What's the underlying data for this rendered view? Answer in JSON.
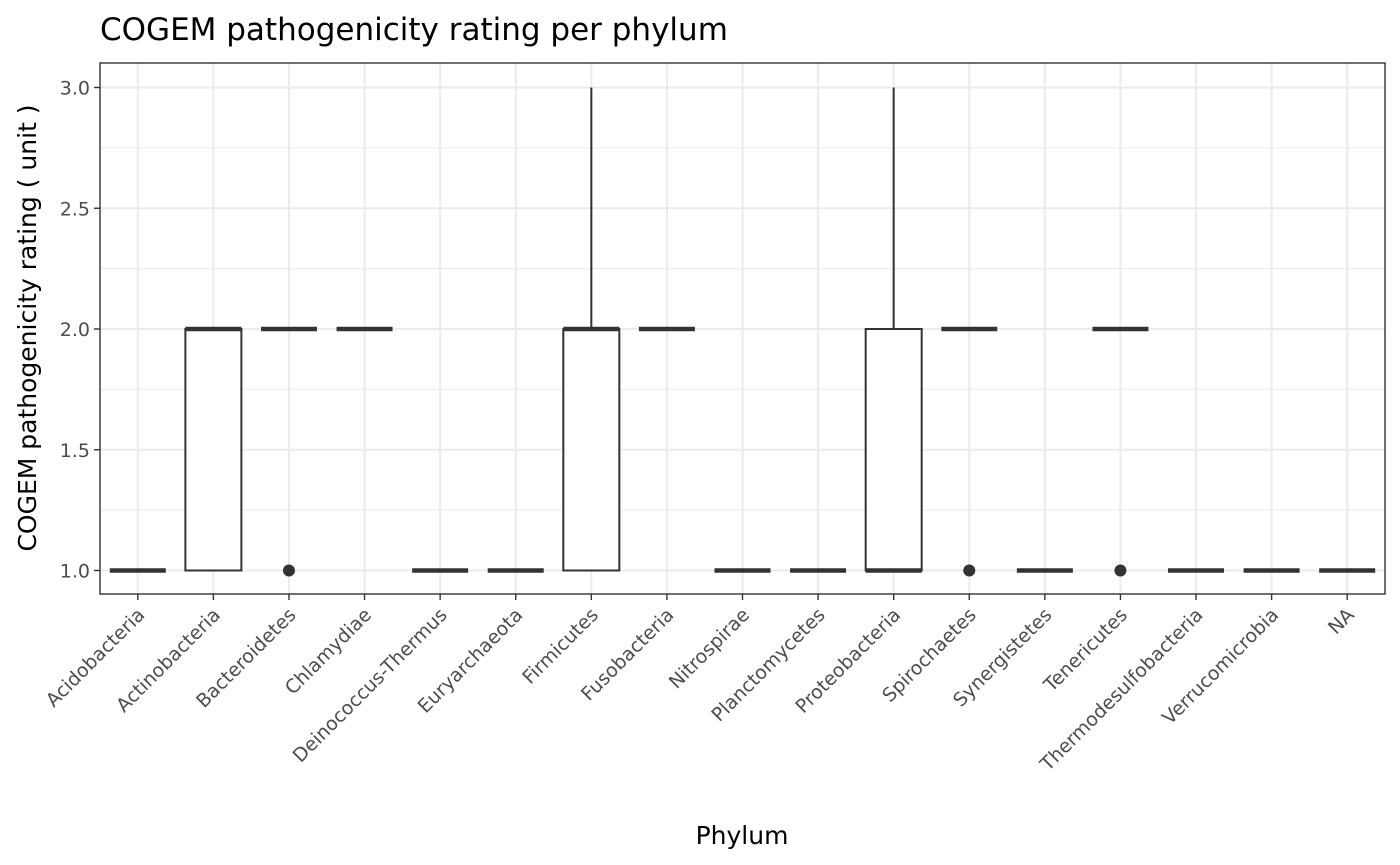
{
  "chart_data": {
    "type": "boxplot",
    "title": "COGEM pathogenicity rating per phylum",
    "xlabel": "Phylum",
    "ylabel": "COGEM pathogenicity rating ( unit )",
    "ylim": [
      0.9,
      3.05
    ],
    "yticks": [
      "1.0",
      "1.5",
      "2.0",
      "2.5",
      "3.0"
    ],
    "ytick_values": [
      1.0,
      1.5,
      2.0,
      2.5,
      3.0
    ],
    "grid": true,
    "categories": [
      "Acidobacteria",
      "Actinobacteria",
      "Bacteroidetes",
      "Chlamydiae",
      "Deinococcus-Thermus",
      "Euryarchaeota",
      "Firmicutes",
      "Fusobacteria",
      "Nitrospirae",
      "Planctomycetes",
      "Proteobacteria",
      "Spirochaetes",
      "Synergistetes",
      "Tenericutes",
      "Thermodesulfobacteria",
      "Verrucomicrobia",
      "NA"
    ],
    "boxes": [
      {
        "q1": 1,
        "median": 1,
        "q3": 1,
        "lower": 1,
        "upper": 1,
        "outliers": []
      },
      {
        "q1": 1,
        "median": 2,
        "q3": 2,
        "lower": 1,
        "upper": 2,
        "outliers": []
      },
      {
        "q1": 2,
        "median": 2,
        "q3": 2,
        "lower": 2,
        "upper": 2,
        "outliers": [
          1
        ]
      },
      {
        "q1": 2,
        "median": 2,
        "q3": 2,
        "lower": 2,
        "upper": 2,
        "outliers": []
      },
      {
        "q1": 1,
        "median": 1,
        "q3": 1,
        "lower": 1,
        "upper": 1,
        "outliers": []
      },
      {
        "q1": 1,
        "median": 1,
        "q3": 1,
        "lower": 1,
        "upper": 1,
        "outliers": []
      },
      {
        "q1": 1,
        "median": 2,
        "q3": 2,
        "lower": 1,
        "upper": 3,
        "outliers": []
      },
      {
        "q1": 2,
        "median": 2,
        "q3": 2,
        "lower": 2,
        "upper": 2,
        "outliers": []
      },
      {
        "q1": 1,
        "median": 1,
        "q3": 1,
        "lower": 1,
        "upper": 1,
        "outliers": []
      },
      {
        "q1": 1,
        "median": 1,
        "q3": 1,
        "lower": 1,
        "upper": 1,
        "outliers": []
      },
      {
        "q1": 1,
        "median": 1,
        "q3": 2,
        "lower": 1,
        "upper": 3,
        "outliers": []
      },
      {
        "q1": 2,
        "median": 2,
        "q3": 2,
        "lower": 2,
        "upper": 2,
        "outliers": [
          1
        ]
      },
      {
        "q1": 1,
        "median": 1,
        "q3": 1,
        "lower": 1,
        "upper": 1,
        "outliers": []
      },
      {
        "q1": 2,
        "median": 2,
        "q3": 2,
        "lower": 2,
        "upper": 2,
        "outliers": [
          1
        ]
      },
      {
        "q1": 1,
        "median": 1,
        "q3": 1,
        "lower": 1,
        "upper": 1,
        "outliers": []
      },
      {
        "q1": 1,
        "median": 1,
        "q3": 1,
        "lower": 1,
        "upper": 1,
        "outliers": []
      },
      {
        "q1": 1,
        "median": 1,
        "q3": 1,
        "lower": 1,
        "upper": 1,
        "outliers": []
      }
    ]
  }
}
